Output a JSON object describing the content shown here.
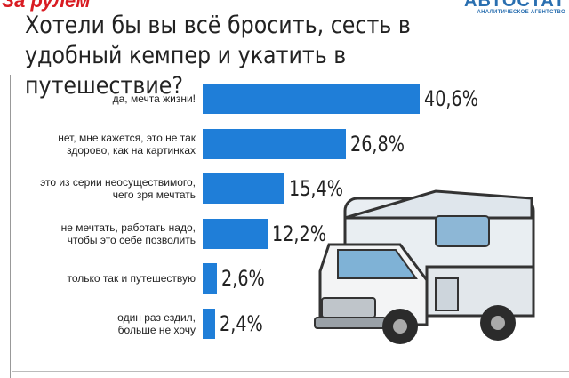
{
  "header": {
    "brand": "За рулем",
    "agency": "АВТОСТАТ",
    "agency_subtitle": "АНАЛИТИЧЕСКОЕ АГЕНТСТВО"
  },
  "chart_data": {
    "type": "bar",
    "orientation": "horizontal",
    "title": "Хотели бы вы всё бросить, сесть в удобный кемпер и укатить в путешествие?",
    "categories": [
      "да, мечта жизни!",
      "нет, мне кажется, это не так\nздорово, как на картинках",
      "это из серии неосуществимого,\nчего зря мечтать",
      "не мечтать, работать надо,\nчтобы это себе позволить",
      "только так и путешествую",
      "один раз ездил,\nбольше не хочу"
    ],
    "values": [
      40.6,
      26.8,
      15.4,
      12.2,
      2.6,
      2.4
    ],
    "value_labels": [
      "40,6%",
      "26,8%",
      "15,4%",
      "12,2%",
      "2,6%",
      "2,4%"
    ],
    "color": "#1f7ed8"
  }
}
